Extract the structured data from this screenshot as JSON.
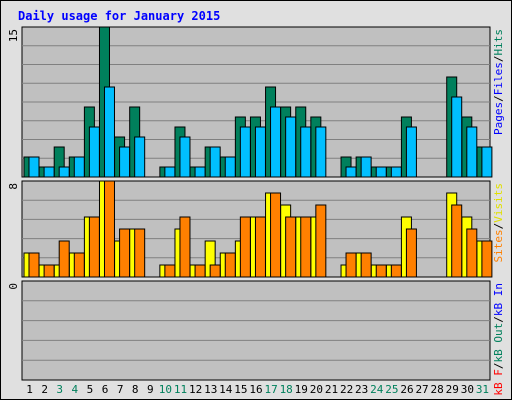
{
  "title": "Daily usage for January 2015",
  "chart_data": [
    {
      "type": "bar",
      "panel": "hits-files-pages",
      "ylim": [
        0,
        15
      ],
      "scale_label": "15",
      "grid": true,
      "legend": [
        {
          "label": "Pages",
          "color": "#0000ff"
        },
        {
          "label": "/",
          "color": "#000000"
        },
        {
          "label": "Files",
          "color": "#0000ff"
        },
        {
          "label": "/",
          "color": "#000000"
        },
        {
          "label": "Hits",
          "color": "#00805c"
        }
      ],
      "series": [
        {
          "name": "Hits",
          "color": "#00805c",
          "values": [
            2,
            1,
            3,
            2,
            7,
            15,
            4,
            7,
            0,
            1,
            5,
            1,
            3,
            2,
            6,
            6,
            9,
            7,
            7,
            6,
            0,
            2,
            2,
            1,
            1,
            6,
            0,
            0,
            10,
            6,
            3
          ]
        },
        {
          "name": "Files",
          "color": "#00bfff",
          "values": [
            2,
            1,
            1,
            2,
            5,
            9,
            3,
            4,
            0,
            1,
            4,
            1,
            3,
            2,
            5,
            5,
            7,
            6,
            5,
            5,
            0,
            1,
            2,
            1,
            1,
            5,
            0,
            0,
            8,
            5,
            3
          ]
        }
      ]
    },
    {
      "type": "bar",
      "panel": "visits-sites",
      "ylim": [
        0,
        8
      ],
      "scale_label": "8",
      "grid": true,
      "legend": [
        {
          "label": "Sites",
          "color": "#ff8000"
        },
        {
          "label": "/",
          "color": "#000000"
        },
        {
          "label": "Visits",
          "color": "#e0e000"
        }
      ],
      "series": [
        {
          "name": "Visits",
          "color": "#ffff00",
          "values": [
            2,
            1,
            1,
            2,
            5,
            8,
            3,
            4,
            0,
            1,
            4,
            1,
            3,
            2,
            3,
            5,
            7,
            6,
            5,
            5,
            0,
            1,
            2,
            1,
            1,
            5,
            0,
            0,
            7,
            5,
            3
          ]
        },
        {
          "name": "Sites",
          "color": "#ff8000",
          "values": [
            2,
            1,
            3,
            2,
            5,
            8,
            4,
            4,
            0,
            1,
            5,
            1,
            1,
            2,
            5,
            5,
            7,
            5,
            5,
            6,
            0,
            2,
            2,
            1,
            1,
            4,
            0,
            0,
            6,
            4,
            3
          ]
        }
      ]
    },
    {
      "type": "bar",
      "panel": "kbytes",
      "ylim": [
        0,
        1
      ],
      "scale_label": "0",
      "grid": true,
      "legend": [
        {
          "label": "kB F",
          "color": "#ff0000"
        },
        {
          "label": "/",
          "color": "#000000"
        },
        {
          "label": "kB Out",
          "color": "#00805c"
        },
        {
          "label": "/",
          "color": "#000000"
        },
        {
          "label": "kB In",
          "color": "#0000ff"
        }
      ],
      "series": []
    }
  ],
  "x_axis": {
    "labels": [
      "1",
      "2",
      "3",
      "4",
      "5",
      "6",
      "7",
      "8",
      "9",
      "10",
      "11",
      "12",
      "13",
      "14",
      "15",
      "16",
      "17",
      "18",
      "19",
      "20",
      "21",
      "22",
      "23",
      "24",
      "25",
      "26",
      "27",
      "28",
      "29",
      "30",
      "31"
    ],
    "weekend": [
      false,
      false,
      true,
      true,
      false,
      false,
      false,
      false,
      false,
      true,
      true,
      false,
      false,
      false,
      false,
      false,
      true,
      true,
      false,
      false,
      false,
      false,
      false,
      true,
      true,
      false,
      false,
      false,
      false,
      false,
      true
    ],
    "weekday_color": "#000000",
    "weekend_color": "#00805c"
  },
  "colors": {
    "panel_bg": "#c0c0c0",
    "grid": "#808080",
    "frame_bg": "#e0e0e0",
    "title": "#0000ff"
  }
}
